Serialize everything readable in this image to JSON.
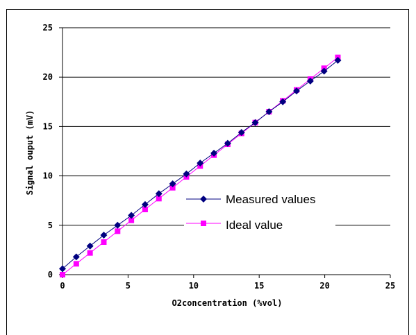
{
  "chart_data": {
    "type": "line",
    "title": "",
    "xlabel": "O2concentration (%vol)",
    "ylabel": "Signal ouput (mV)",
    "xlim": [
      0,
      25
    ],
    "ylim": [
      0,
      25
    ],
    "xticks": [
      "0",
      "5",
      "10",
      "15",
      "20",
      "25"
    ],
    "yticks": [
      "0",
      "5",
      "10",
      "15",
      "20",
      "25"
    ],
    "grid": "horizontal major gridlines",
    "legend_position": "center-right",
    "series": [
      {
        "name": "Measured values",
        "color": "#000080",
        "marker": "diamond",
        "x": [
          0,
          1.05,
          2.1,
          3.15,
          4.2,
          5.25,
          6.3,
          7.35,
          8.4,
          9.45,
          10.5,
          11.55,
          12.6,
          13.65,
          14.7,
          15.75,
          16.8,
          17.85,
          18.9,
          19.95,
          21
        ],
        "y": [
          0.6,
          1.8,
          2.9,
          4.0,
          5.0,
          6.0,
          7.1,
          8.2,
          9.2,
          10.2,
          11.3,
          12.3,
          13.3,
          14.4,
          15.4,
          16.5,
          17.5,
          18.6,
          19.6,
          20.6,
          21.7
        ]
      },
      {
        "name": "Ideal value",
        "color": "#ff00ff",
        "marker": "square",
        "x": [
          0,
          1.05,
          2.1,
          3.15,
          4.2,
          5.25,
          6.3,
          7.35,
          8.4,
          9.45,
          10.5,
          11.55,
          12.6,
          13.65,
          14.7,
          15.75,
          16.8,
          17.85,
          18.9,
          19.95,
          21
        ],
        "y": [
          0,
          1.1,
          2.2,
          3.3,
          4.4,
          5.5,
          6.6,
          7.7,
          8.8,
          9.9,
          11.0,
          12.1,
          13.2,
          14.3,
          15.4,
          16.5,
          17.6,
          18.7,
          19.8,
          20.9,
          22.0
        ]
      }
    ]
  }
}
